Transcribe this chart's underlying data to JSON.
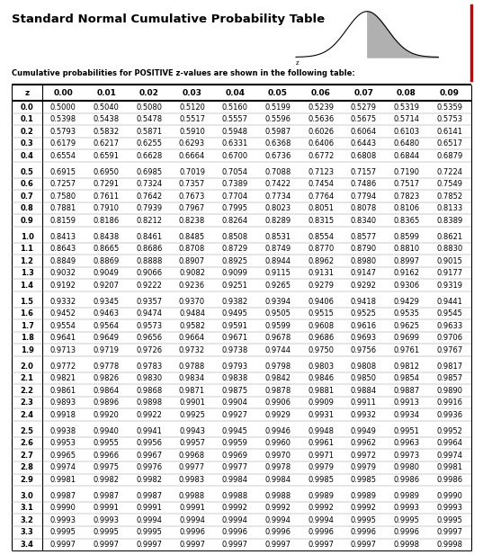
{
  "title": "Standard Normal Cumulative Probability Table",
  "subtitle": "Cumulative probabilities for POSITIVE z-values are shown in the following table:",
  "col_headers": [
    "z",
    "0.00",
    "0.01",
    "0.02",
    "0.03",
    "0.04",
    "0.05",
    "0.06",
    "0.07",
    "0.08",
    "0.09"
  ],
  "rows": [
    [
      "0.0",
      "0.5000",
      "0.5040",
      "0.5080",
      "0.5120",
      "0.5160",
      "0.5199",
      "0.5239",
      "0.5279",
      "0.5319",
      "0.5359"
    ],
    [
      "0.1",
      "0.5398",
      "0.5438",
      "0.5478",
      "0.5517",
      "0.5557",
      "0.5596",
      "0.5636",
      "0.5675",
      "0.5714",
      "0.5753"
    ],
    [
      "0.2",
      "0.5793",
      "0.5832",
      "0.5871",
      "0.5910",
      "0.5948",
      "0.5987",
      "0.6026",
      "0.6064",
      "0.6103",
      "0.6141"
    ],
    [
      "0.3",
      "0.6179",
      "0.6217",
      "0.6255",
      "0.6293",
      "0.6331",
      "0.6368",
      "0.6406",
      "0.6443",
      "0.6480",
      "0.6517"
    ],
    [
      "0.4",
      "0.6554",
      "0.6591",
      "0.6628",
      "0.6664",
      "0.6700",
      "0.6736",
      "0.6772",
      "0.6808",
      "0.6844",
      "0.6879"
    ],
    [
      "0.5",
      "0.6915",
      "0.6950",
      "0.6985",
      "0.7019",
      "0.7054",
      "0.7088",
      "0.7123",
      "0.7157",
      "0.7190",
      "0.7224"
    ],
    [
      "0.6",
      "0.7257",
      "0.7291",
      "0.7324",
      "0.7357",
      "0.7389",
      "0.7422",
      "0.7454",
      "0.7486",
      "0.7517",
      "0.7549"
    ],
    [
      "0.7",
      "0.7580",
      "0.7611",
      "0.7642",
      "0.7673",
      "0.7704",
      "0.7734",
      "0.7764",
      "0.7794",
      "0.7823",
      "0.7852"
    ],
    [
      "0.8",
      "0.7881",
      "0.7910",
      "0.7939",
      "0.7967",
      "0.7995",
      "0.8023",
      "0.8051",
      "0.8078",
      "0.8106",
      "0.8133"
    ],
    [
      "0.9",
      "0.8159",
      "0.8186",
      "0.8212",
      "0.8238",
      "0.8264",
      "0.8289",
      "0.8315",
      "0.8340",
      "0.8365",
      "0.8389"
    ],
    [
      "1.0",
      "0.8413",
      "0.8438",
      "0.8461",
      "0.8485",
      "0.8508",
      "0.8531",
      "0.8554",
      "0.8577",
      "0.8599",
      "0.8621"
    ],
    [
      "1.1",
      "0.8643",
      "0.8665",
      "0.8686",
      "0.8708",
      "0.8729",
      "0.8749",
      "0.8770",
      "0.8790",
      "0.8810",
      "0.8830"
    ],
    [
      "1.2",
      "0.8849",
      "0.8869",
      "0.8888",
      "0.8907",
      "0.8925",
      "0.8944",
      "0.8962",
      "0.8980",
      "0.8997",
      "0.9015"
    ],
    [
      "1.3",
      "0.9032",
      "0.9049",
      "0.9066",
      "0.9082",
      "0.9099",
      "0.9115",
      "0.9131",
      "0.9147",
      "0.9162",
      "0.9177"
    ],
    [
      "1.4",
      "0.9192",
      "0.9207",
      "0.9222",
      "0.9236",
      "0.9251",
      "0.9265",
      "0.9279",
      "0.9292",
      "0.9306",
      "0.9319"
    ],
    [
      "1.5",
      "0.9332",
      "0.9345",
      "0.9357",
      "0.9370",
      "0.9382",
      "0.9394",
      "0.9406",
      "0.9418",
      "0.9429",
      "0.9441"
    ],
    [
      "1.6",
      "0.9452",
      "0.9463",
      "0.9474",
      "0.9484",
      "0.9495",
      "0.9505",
      "0.9515",
      "0.9525",
      "0.9535",
      "0.9545"
    ],
    [
      "1.7",
      "0.9554",
      "0.9564",
      "0.9573",
      "0.9582",
      "0.9591",
      "0.9599",
      "0.9608",
      "0.9616",
      "0.9625",
      "0.9633"
    ],
    [
      "1.8",
      "0.9641",
      "0.9649",
      "0.9656",
      "0.9664",
      "0.9671",
      "0.9678",
      "0.9686",
      "0.9693",
      "0.9699",
      "0.9706"
    ],
    [
      "1.9",
      "0.9713",
      "0.9719",
      "0.9726",
      "0.9732",
      "0.9738",
      "0.9744",
      "0.9750",
      "0.9756",
      "0.9761",
      "0.9767"
    ],
    [
      "2.0",
      "0.9772",
      "0.9778",
      "0.9783",
      "0.9788",
      "0.9793",
      "0.9798",
      "0.9803",
      "0.9808",
      "0.9812",
      "0.9817"
    ],
    [
      "2.1",
      "0.9821",
      "0.9826",
      "0.9830",
      "0.9834",
      "0.9838",
      "0.9842",
      "0.9846",
      "0.9850",
      "0.9854",
      "0.9857"
    ],
    [
      "2.2",
      "0.9861",
      "0.9864",
      "0.9868",
      "0.9871",
      "0.9875",
      "0.9878",
      "0.9881",
      "0.9884",
      "0.9887",
      "0.9890"
    ],
    [
      "2.3",
      "0.9893",
      "0.9896",
      "0.9898",
      "0.9901",
      "0.9904",
      "0.9906",
      "0.9909",
      "0.9911",
      "0.9913",
      "0.9916"
    ],
    [
      "2.4",
      "0.9918",
      "0.9920",
      "0.9922",
      "0.9925",
      "0.9927",
      "0.9929",
      "0.9931",
      "0.9932",
      "0.9934",
      "0.9936"
    ],
    [
      "2.5",
      "0.9938",
      "0.9940",
      "0.9941",
      "0.9943",
      "0.9945",
      "0.9946",
      "0.9948",
      "0.9949",
      "0.9951",
      "0.9952"
    ],
    [
      "2.6",
      "0.9953",
      "0.9955",
      "0.9956",
      "0.9957",
      "0.9959",
      "0.9960",
      "0.9961",
      "0.9962",
      "0.9963",
      "0.9964"
    ],
    [
      "2.7",
      "0.9965",
      "0.9966",
      "0.9967",
      "0.9968",
      "0.9969",
      "0.9970",
      "0.9971",
      "0.9972",
      "0.9973",
      "0.9974"
    ],
    [
      "2.8",
      "0.9974",
      "0.9975",
      "0.9976",
      "0.9977",
      "0.9977",
      "0.9978",
      "0.9979",
      "0.9979",
      "0.9980",
      "0.9981"
    ],
    [
      "2.9",
      "0.9981",
      "0.9982",
      "0.9982",
      "0.9983",
      "0.9984",
      "0.9984",
      "0.9985",
      "0.9985",
      "0.9986",
      "0.9986"
    ],
    [
      "3.0",
      "0.9987",
      "0.9987",
      "0.9987",
      "0.9988",
      "0.9988",
      "0.9988",
      "0.9989",
      "0.9989",
      "0.9989",
      "0.9990"
    ],
    [
      "3.1",
      "0.9990",
      "0.9991",
      "0.9991",
      "0.9991",
      "0.9992",
      "0.9992",
      "0.9992",
      "0.9992",
      "0.9993",
      "0.9993"
    ],
    [
      "3.2",
      "0.9993",
      "0.9993",
      "0.9994",
      "0.9994",
      "0.9994",
      "0.9994",
      "0.9994",
      "0.9995",
      "0.9995",
      "0.9995"
    ],
    [
      "3.3",
      "0.9995",
      "0.9995",
      "0.9995",
      "0.9996",
      "0.9996",
      "0.9996",
      "0.9996",
      "0.9996",
      "0.9996",
      "0.9997"
    ],
    [
      "3.4",
      "0.9997",
      "0.9997",
      "0.9997",
      "0.9997",
      "0.9997",
      "0.9997",
      "0.9997",
      "0.9997",
      "0.9998",
      "0.9998"
    ]
  ],
  "group_breaks_after": [
    4,
    9,
    14,
    19,
    24,
    29
  ],
  "bg_color": "#ffffff",
  "text_color": "#000000",
  "title_fontsize": 9.5,
  "subtitle_fontsize": 6.0,
  "header_fontsize": 6.5,
  "data_fontsize": 6.0,
  "red_line_color": "#cc0000"
}
